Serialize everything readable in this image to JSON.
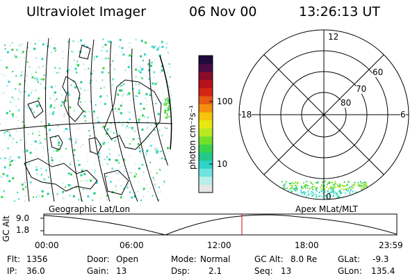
{
  "header": {
    "instrument": "Ultraviolet Imager",
    "date": "06 Nov 00",
    "time": "13:26:13 UT"
  },
  "colorbar": {
    "label": "photon cm⁻²s⁻¹",
    "ticks": [
      "100",
      "10"
    ],
    "colors": [
      "#e6e6e6",
      "#b7efe9",
      "#6fe3dd",
      "#2fd3c8",
      "#22c98a",
      "#3ad34e",
      "#74df2a",
      "#b9e920",
      "#e7e812",
      "#f6c40c",
      "#f58e0f",
      "#e65a13",
      "#d42516",
      "#b8101a",
      "#8a0c2a",
      "#4b0c45",
      "#1e0a3c"
    ]
  },
  "polar": {
    "mlt_labels": [
      "12",
      "18",
      "6",
      "0"
    ],
    "lat_labels": [
      "60",
      "70",
      "80"
    ]
  },
  "timeline": {
    "left_label": "Geographic Lat/Lon",
    "right_label": "Apex MLat/MLT",
    "y_axis_label": "GC Alt",
    "y_ticks": [
      "9.0",
      "1.8"
    ],
    "x_ticks": [
      "00:00",
      "06:00",
      "12:00",
      "18:00",
      "23:59"
    ],
    "current_time_fraction": 0.561
  },
  "info": {
    "flt_label": "Flt:",
    "flt_value": "1356",
    "ip_label": "IP:",
    "ip_value": "36.0",
    "door_label": "Door:",
    "door_value": "Open",
    "gain_label": "Gain:",
    "gain_value": "13",
    "mode_label": "Mode:",
    "mode_value": "Normal",
    "dsp_label": "Dsp:",
    "dsp_value": "2.1",
    "gcalt_label": "GC Alt:",
    "gcalt_value": "8.0 Re",
    "seq_label": "Seq:",
    "seq_value": "13",
    "glat_label": "GLat:",
    "glat_value": "-9.3",
    "glon_label": "GLon:",
    "glon_value": "135.4"
  }
}
